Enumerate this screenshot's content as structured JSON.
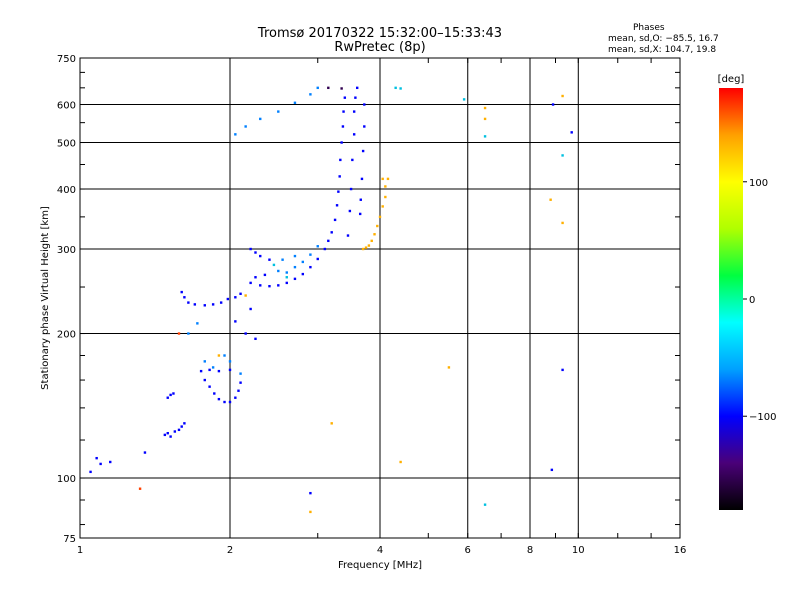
{
  "chart_data": {
    "type": "scatter",
    "title": "Tromsø 20170322 15:32:00–15:33:43",
    "subtitle": "RwPretec (8p)",
    "xlabel": "Frequency [MHz]",
    "ylabel": "Stationary phase Virtual Height [km]",
    "xscale": "log",
    "yscale": "log",
    "xlim": [
      1,
      16
    ],
    "ylim": [
      75,
      750
    ],
    "x_ticks": [
      "1",
      "2",
      "4",
      "6",
      "8",
      "10",
      "16"
    ],
    "y_ticks": [
      "75",
      "100",
      "200",
      "300",
      "400",
      "500",
      "600",
      "750"
    ],
    "grid_x": [
      2,
      4,
      6,
      8,
      10
    ],
    "grid_y": [
      100,
      200,
      300,
      400,
      500,
      600
    ],
    "phase_stats": {
      "heading": "Phases",
      "line_o": "mean, sd,O: −85.5, 16.7",
      "line_x": "mean, sd,X: 104.7, 19.8"
    },
    "colorbar": {
      "title": "[deg]",
      "range": [
        -180,
        180
      ],
      "ticks": [
        "100",
        "0",
        "−100"
      ],
      "tick_values": [
        100,
        0,
        -100
      ],
      "colors": [
        "#000000",
        "#4a0078",
        "#0000ff",
        "#00a0ff",
        "#00ffff",
        "#00ff40",
        "#b0ff00",
        "#ffff00",
        "#ffa000",
        "#ff0000"
      ]
    },
    "series": [
      {
        "color": "#0000ff",
        "points": [
          [
            1.05,
            103
          ],
          [
            1.08,
            110
          ],
          [
            1.1,
            107
          ],
          [
            1.15,
            108
          ],
          [
            1.35,
            113
          ],
          [
            1.48,
            123
          ],
          [
            1.5,
            124
          ],
          [
            1.52,
            122
          ],
          [
            1.55,
            125
          ],
          [
            1.58,
            126
          ],
          [
            1.6,
            128
          ],
          [
            1.62,
            130
          ],
          [
            1.5,
            147
          ],
          [
            1.52,
            149
          ],
          [
            1.54,
            150
          ],
          [
            1.6,
            244
          ],
          [
            1.62,
            238
          ],
          [
            1.65,
            232
          ],
          [
            1.7,
            230
          ],
          [
            1.78,
            229
          ],
          [
            1.85,
            230
          ],
          [
            1.92,
            232
          ],
          [
            1.98,
            236
          ],
          [
            2.05,
            238
          ],
          [
            2.1,
            242
          ],
          [
            1.78,
            160
          ],
          [
            1.82,
            155
          ],
          [
            1.86,
            150
          ],
          [
            1.9,
            146
          ],
          [
            1.95,
            144
          ],
          [
            2.0,
            144
          ],
          [
            2.05,
            147
          ],
          [
            2.08,
            152
          ],
          [
            2.1,
            158
          ],
          [
            1.75,
            167
          ],
          [
            1.82,
            168
          ],
          [
            1.9,
            167
          ],
          [
            2.0,
            168
          ],
          [
            2.2,
            255
          ],
          [
            2.3,
            252
          ],
          [
            2.4,
            251
          ],
          [
            2.5,
            252
          ],
          [
            2.6,
            255
          ],
          [
            2.7,
            260
          ],
          [
            2.8,
            266
          ],
          [
            2.9,
            275
          ],
          [
            3.0,
            286
          ],
          [
            3.1,
            300
          ],
          [
            3.15,
            312
          ],
          [
            3.2,
            325
          ],
          [
            3.25,
            345
          ],
          [
            3.28,
            370
          ],
          [
            3.3,
            395
          ],
          [
            3.32,
            425
          ],
          [
            3.33,
            460
          ],
          [
            3.35,
            500
          ],
          [
            3.37,
            540
          ],
          [
            3.38,
            580
          ],
          [
            3.4,
            620
          ],
          [
            3.45,
            320
          ],
          [
            3.48,
            360
          ],
          [
            3.5,
            400
          ],
          [
            3.52,
            460
          ],
          [
            3.55,
            520
          ],
          [
            3.55,
            580
          ],
          [
            3.57,
            620
          ],
          [
            3.6,
            650
          ],
          [
            3.65,
            355
          ],
          [
            3.66,
            380
          ],
          [
            3.68,
            420
          ],
          [
            3.7,
            480
          ],
          [
            3.72,
            540
          ],
          [
            3.72,
            600
          ],
          [
            2.2,
            300
          ],
          [
            2.25,
            295
          ],
          [
            2.3,
            290
          ],
          [
            2.35,
            265
          ],
          [
            2.25,
            262
          ],
          [
            2.4,
            285
          ],
          [
            2.05,
            212
          ],
          [
            2.15,
            200
          ],
          [
            2.25,
            195
          ],
          [
            2.2,
            225
          ],
          [
            2.9,
            93
          ],
          [
            8.85,
            104
          ],
          [
            9.3,
            168
          ],
          [
            9.7,
            525
          ],
          [
            8.9,
            600
          ]
        ]
      },
      {
        "color": "#0080ff",
        "points": [
          [
            2.05,
            520
          ],
          [
            2.15,
            540
          ],
          [
            2.3,
            560
          ],
          [
            2.5,
            580
          ],
          [
            2.7,
            605
          ],
          [
            2.9,
            630
          ],
          [
            3.0,
            650
          ],
          [
            1.65,
            200
          ],
          [
            1.72,
            210
          ],
          [
            1.78,
            175
          ],
          [
            1.85,
            170
          ],
          [
            1.95,
            180
          ],
          [
            2.0,
            175
          ],
          [
            2.1,
            165
          ],
          [
            2.6,
            268
          ],
          [
            2.7,
            275
          ],
          [
            2.8,
            282
          ],
          [
            2.9,
            292
          ],
          [
            3.0,
            304
          ],
          [
            2.5,
            270
          ],
          [
            2.55,
            285
          ],
          [
            2.7,
            290
          ]
        ]
      },
      {
        "color": "#00c0e0",
        "points": [
          [
            4.3,
            650
          ],
          [
            5.9,
            615
          ],
          [
            6.5,
            515
          ],
          [
            6.5,
            88
          ],
          [
            9.3,
            470
          ],
          [
            4.4,
            648
          ],
          [
            2.45,
            278
          ],
          [
            2.6,
            262
          ]
        ]
      },
      {
        "color": "#ffb000",
        "points": [
          [
            3.7,
            300
          ],
          [
            3.75,
            302
          ],
          [
            3.8,
            305
          ],
          [
            3.85,
            312
          ],
          [
            3.9,
            322
          ],
          [
            3.95,
            335
          ],
          [
            4.0,
            350
          ],
          [
            4.05,
            368
          ],
          [
            4.1,
            385
          ],
          [
            4.1,
            405
          ],
          [
            4.15,
            420
          ],
          [
            4.05,
            420
          ],
          [
            1.9,
            180
          ],
          [
            2.15,
            240
          ],
          [
            5.5,
            170
          ],
          [
            9.3,
            340
          ],
          [
            8.8,
            380
          ],
          [
            6.5,
            560
          ],
          [
            4.4,
            108
          ],
          [
            2.9,
            85
          ],
          [
            3.2,
            130
          ],
          [
            9.3,
            625
          ],
          [
            6.5,
            590
          ]
        ]
      },
      {
        "color": "#ff4000",
        "points": [
          [
            1.58,
            200
          ],
          [
            1.32,
            95
          ]
        ]
      },
      {
        "color": "#300050",
        "points": [
          [
            3.15,
            650
          ],
          [
            3.35,
            648
          ]
        ]
      }
    ]
  }
}
